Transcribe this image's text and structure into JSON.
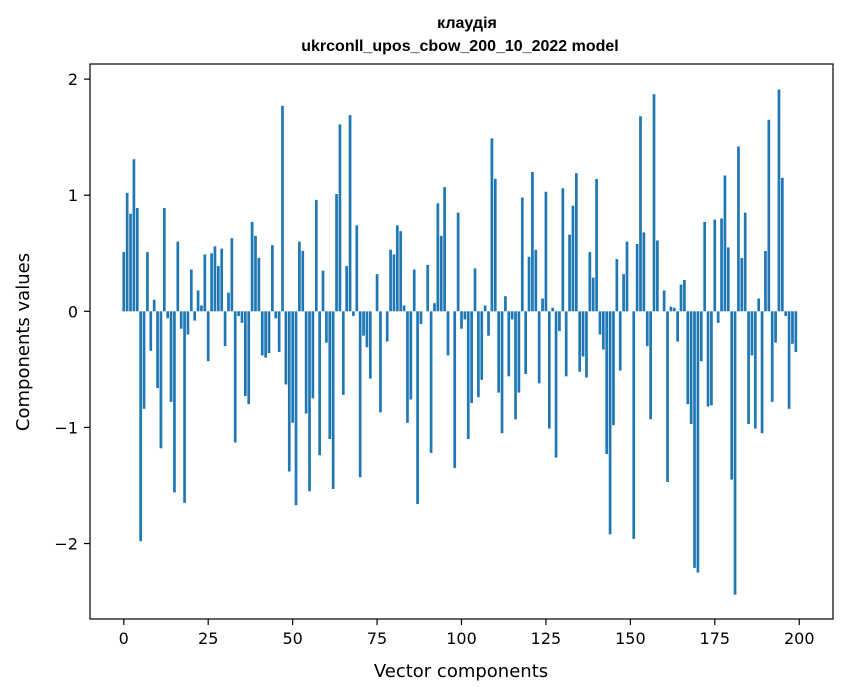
{
  "chart_data": {
    "type": "bar",
    "title": "клаудія",
    "subtitle": "ukrconll_upos_cbow_200_10_2022 model",
    "xlabel": "Vector components",
    "ylabel": "Components values",
    "xlim": [
      -10,
      210
    ],
    "ylim": [
      -2.65,
      2.13
    ],
    "xticks": [
      0,
      25,
      50,
      75,
      100,
      125,
      150,
      175,
      200
    ],
    "xtick_labels": [
      "0",
      "25",
      "50",
      "75",
      "100",
      "125",
      "150",
      "175",
      "200"
    ],
    "yticks": [
      -2,
      -1,
      0,
      1,
      2
    ],
    "ytick_labels": [
      "−2",
      "−1",
      "0",
      "1",
      "2"
    ],
    "grid": false,
    "bar_color": "#1f77b4",
    "x": [
      0,
      1,
      2,
      3,
      4,
      5,
      6,
      7,
      8,
      9,
      10,
      11,
      12,
      13,
      14,
      15,
      16,
      17,
      18,
      19,
      20,
      21,
      22,
      23,
      24,
      25,
      26,
      27,
      28,
      29,
      30,
      31,
      32,
      33,
      34,
      35,
      36,
      37,
      38,
      39,
      40,
      41,
      42,
      43,
      44,
      45,
      46,
      47,
      48,
      49,
      50,
      51,
      52,
      53,
      54,
      55,
      56,
      57,
      58,
      59,
      60,
      61,
      62,
      63,
      64,
      65,
      66,
      67,
      68,
      69,
      70,
      71,
      72,
      73,
      74,
      75,
      76,
      77,
      78,
      79,
      80,
      81,
      82,
      83,
      84,
      85,
      86,
      87,
      88,
      89,
      90,
      91,
      92,
      93,
      94,
      95,
      96,
      97,
      98,
      99,
      100,
      101,
      102,
      103,
      104,
      105,
      106,
      107,
      108,
      109,
      110,
      111,
      112,
      113,
      114,
      115,
      116,
      117,
      118,
      119,
      120,
      121,
      122,
      123,
      124,
      125,
      126,
      127,
      128,
      129,
      130,
      131,
      132,
      133,
      134,
      135,
      136,
      137,
      138,
      139,
      140,
      141,
      142,
      143,
      144,
      145,
      146,
      147,
      148,
      149,
      150,
      151,
      152,
      153,
      154,
      155,
      156,
      157,
      158,
      159,
      160,
      161,
      162,
      163,
      164,
      165,
      166,
      167,
      168,
      169,
      170,
      171,
      172,
      173,
      174,
      175,
      176,
      177,
      178,
      179,
      180,
      181,
      182,
      183,
      184,
      185,
      186,
      187,
      188,
      189,
      190,
      191,
      192,
      193,
      194,
      195,
      196,
      197,
      198,
      199
    ],
    "values": [
      0.51,
      1.02,
      0.84,
      1.31,
      0.89,
      -1.98,
      -0.84,
      0.51,
      -0.34,
      0.1,
      -0.66,
      -1.18,
      0.89,
      -0.06,
      -0.78,
      -1.56,
      0.6,
      -0.15,
      -1.65,
      -0.2,
      0.36,
      -0.08,
      0.18,
      0.05,
      0.49,
      -0.43,
      0.5,
      0.56,
      0.39,
      0.54,
      -0.3,
      0.16,
      0.63,
      -1.13,
      -0.04,
      -0.1,
      -0.73,
      -0.8,
      0.77,
      0.65,
      0.46,
      -0.38,
      -0.4,
      -0.36,
      0.57,
      -0.06,
      -0.35,
      1.77,
      -0.63,
      -1.38,
      -0.96,
      -1.67,
      0.6,
      0.52,
      -0.88,
      -1.55,
      -0.75,
      0.96,
      -1.24,
      0.35,
      -0.27,
      -1.1,
      -1.53,
      1.01,
      1.61,
      -0.72,
      0.39,
      1.69,
      -0.04,
      0.74,
      -1.43,
      -0.21,
      -0.31,
      -0.58,
      0.0,
      0.32,
      -0.87,
      0.0,
      -0.26,
      0.53,
      0.49,
      0.74,
      0.69,
      0.05,
      -0.96,
      -0.76,
      0.36,
      -1.66,
      -0.11,
      0.0,
      0.4,
      -1.22,
      0.07,
      0.93,
      0.65,
      1.07,
      -0.38,
      0.0,
      -1.35,
      0.85,
      -0.15,
      -0.07,
      -1.1,
      -0.79,
      0.37,
      -0.74,
      -0.59,
      0.05,
      -0.21,
      1.49,
      1.14,
      -0.7,
      -1.05,
      0.13,
      -0.56,
      -0.07,
      -0.93,
      -0.7,
      0.98,
      -0.54,
      0.47,
      1.2,
      0.53,
      -0.62,
      0.11,
      1.03,
      -1.01,
      0.03,
      -1.26,
      -0.17,
      1.06,
      -0.56,
      0.66,
      0.91,
      1.19,
      -0.52,
      -0.39,
      -0.57,
      0.51,
      0.29,
      1.14,
      -0.2,
      -0.33,
      -1.23,
      -1.92,
      -0.98,
      0.45,
      -0.51,
      0.32,
      0.6,
      0.0,
      -1.96,
      0.58,
      1.68,
      0.68,
      -0.3,
      -0.93,
      1.87,
      0.61,
      0.0,
      0.18,
      -1.47,
      0.04,
      0.03,
      -0.26,
      0.23,
      0.27,
      -0.8,
      -0.97,
      -2.21,
      -2.25,
      -0.43,
      0.77,
      -0.82,
      -0.81,
      0.79,
      -0.1,
      0.8,
      1.17,
      0.55,
      -1.45,
      -2.44,
      1.42,
      0.46,
      0.85,
      -0.97,
      -0.38,
      -1.01,
      0.11,
      -1.05,
      0.52,
      1.65,
      -0.78,
      -0.27,
      1.91,
      1.15,
      -0.04,
      -0.84,
      -0.28,
      -0.35
    ]
  }
}
